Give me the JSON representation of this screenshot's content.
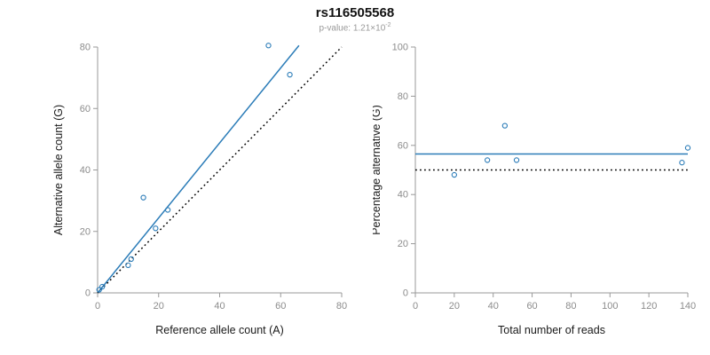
{
  "header": {
    "title": "rs116505568",
    "pvalue_text": "p-value: 1.21×10",
    "pvalue_exponent": "-2"
  },
  "style": {
    "accent_blue": "#2b7cb8",
    "axis_color": "#999999",
    "tick_label_color": "#8c8c8c",
    "axis_title_color": "#1a1a1a",
    "subtitle_color": "#999999"
  },
  "chart_data": [
    {
      "type": "scatter",
      "title": "",
      "xlabel": "Reference allele count (A)",
      "ylabel": "Alternative allele count (G)",
      "xlim": [
        0,
        80
      ],
      "ylim": [
        0,
        80
      ],
      "xticks": [
        0,
        20,
        40,
        60,
        80
      ],
      "yticks": [
        0,
        20,
        40,
        60,
        80
      ],
      "grid": false,
      "legend": "none",
      "point_color": "#2b7cb8",
      "points": [
        [
          0.5,
          1
        ],
        [
          1.5,
          2
        ],
        [
          10,
          9
        ],
        [
          11,
          11
        ],
        [
          15,
          31
        ],
        [
          19,
          21
        ],
        [
          23,
          27
        ],
        [
          56,
          80.5
        ],
        [
          63,
          71
        ]
      ],
      "lines": [
        {
          "name": "fit-line",
          "dash": "solid",
          "color": "#2b7cb8",
          "x1": 0,
          "y1": 0,
          "x2": 66,
          "y2": 80.5
        },
        {
          "name": "identity-line",
          "dash": "dotted",
          "color": "#000000",
          "x1": 0,
          "y1": 0,
          "x2": 80,
          "y2": 80
        }
      ]
    },
    {
      "type": "scatter",
      "title": "",
      "xlabel": "Total number of reads",
      "ylabel": "Percentage alternative (G)",
      "xlim": [
        0,
        140
      ],
      "ylim": [
        0,
        100
      ],
      "xticks": [
        0,
        20,
        40,
        60,
        80,
        100,
        120,
        140
      ],
      "yticks": [
        0,
        20,
        40,
        60,
        80,
        100
      ],
      "grid": false,
      "legend": "none",
      "point_color": "#2b7cb8",
      "points": [
        [
          20,
          48
        ],
        [
          37,
          54
        ],
        [
          46,
          68
        ],
        [
          52,
          54
        ],
        [
          137,
          53
        ],
        [
          140,
          59
        ]
      ],
      "lines": [
        {
          "name": "fit-line",
          "dash": "solid",
          "color": "#2b7cb8",
          "x1": 0,
          "y1": 56.5,
          "x2": 140,
          "y2": 56.5
        },
        {
          "name": "reference-line",
          "dash": "dotted",
          "color": "#000000",
          "x1": 0,
          "y1": 50,
          "x2": 140,
          "y2": 50
        }
      ]
    }
  ]
}
